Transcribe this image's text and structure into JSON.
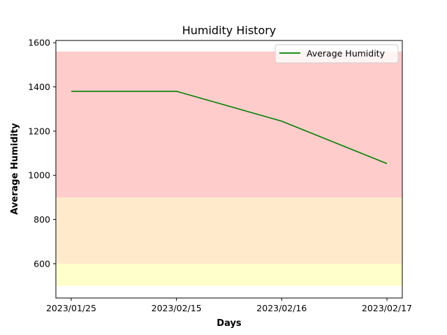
{
  "chart_data": {
    "type": "line",
    "title": "Humidity History",
    "xlabel": "Days",
    "ylabel": "Average Humidity",
    "categories": [
      "2023/01/25",
      "2023/02/15",
      "2023/02/16",
      "2023/02/17"
    ],
    "series": [
      {
        "name": "Average Humidity",
        "values": [
          1380,
          1380,
          1245,
          1053
        ],
        "color": "#008000"
      }
    ],
    "ylim": [
      445,
      1610
    ],
    "yticks": [
      600,
      800,
      1000,
      1200,
      1400,
      1600
    ],
    "bands": [
      {
        "from": 500,
        "to": 600,
        "color": "#ffffcc"
      },
      {
        "from": 600,
        "to": 900,
        "color": "#ffebcc"
      },
      {
        "from": 900,
        "to": 1560,
        "color": "#ffcccc"
      }
    ],
    "grid": false,
    "legend_position": "upper-right"
  }
}
